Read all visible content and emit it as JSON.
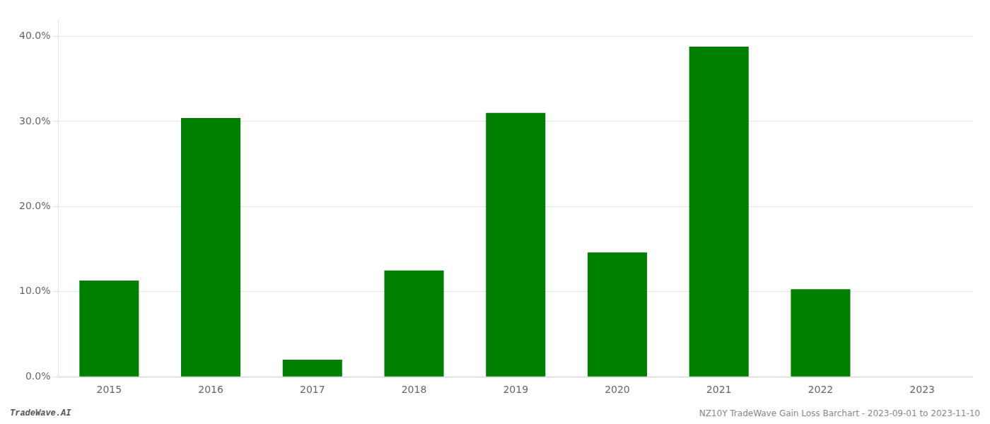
{
  "chart_data": {
    "type": "bar",
    "categories": [
      "2015",
      "2016",
      "2017",
      "2018",
      "2019",
      "2020",
      "2021",
      "2022",
      "2023"
    ],
    "values": [
      0.113,
      0.304,
      0.02,
      0.125,
      0.31,
      0.146,
      0.388,
      0.103,
      0.0
    ],
    "color": "#008000",
    "ylim": [
      0,
      0.42
    ],
    "yticks": [
      {
        "value": 0.0,
        "label": "0.0%"
      },
      {
        "value": 0.1,
        "label": "10.0%"
      },
      {
        "value": 0.2,
        "label": "20.0%"
      },
      {
        "value": 0.3,
        "label": "30.0%"
      },
      {
        "value": 0.4,
        "label": "40.0%"
      }
    ],
    "grid": true,
    "annotations": [
      "TradeWave.AI",
      "NZ10Y TradeWave Gain Loss Barchart - 2023-09-01 to 2023-11-10"
    ]
  }
}
